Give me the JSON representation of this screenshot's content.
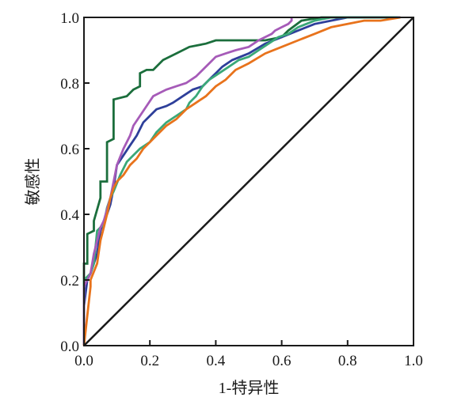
{
  "chart_data": {
    "type": "line",
    "title": "",
    "xlabel": "1-特异性",
    "ylabel": "敏感性",
    "xlim": [
      0,
      1
    ],
    "ylim": [
      0,
      1
    ],
    "xticks": [
      "0.0",
      "0.2",
      "0.4",
      "0.6",
      "0.8",
      "1.0"
    ],
    "yticks": [
      "0.0",
      "0.2",
      "0.4",
      "0.6",
      "0.8",
      "1.0"
    ],
    "grid": false,
    "legend": "none",
    "reference_line": {
      "x": [
        0,
        1
      ],
      "y": [
        0,
        1
      ],
      "color": "#1a1a1a"
    },
    "series": [
      {
        "color": "#1b6e3c",
        "x": [
          0.0,
          0.0,
          0.01,
          0.01,
          0.03,
          0.03,
          0.05,
          0.05,
          0.07,
          0.07,
          0.09,
          0.09,
          0.13,
          0.15,
          0.17,
          0.17,
          0.19,
          0.21,
          0.24,
          0.28,
          0.32,
          0.37,
          0.4,
          0.45,
          0.55,
          0.6,
          0.62,
          0.66,
          0.72,
          0.75,
          0.8,
          0.95,
          0.95
        ],
        "y": [
          0.0,
          0.25,
          0.25,
          0.34,
          0.35,
          0.38,
          0.45,
          0.5,
          0.5,
          0.62,
          0.63,
          0.75,
          0.76,
          0.78,
          0.79,
          0.83,
          0.84,
          0.84,
          0.87,
          0.89,
          0.91,
          0.92,
          0.93,
          0.93,
          0.93,
          0.94,
          0.96,
          0.99,
          1.0,
          1.0,
          1.0,
          1.0,
          1.0
        ]
      },
      {
        "color": "#2e3f9a",
        "x": [
          0.0,
          0.0,
          0.01,
          0.02,
          0.04,
          0.05,
          0.06,
          0.07,
          0.08,
          0.09,
          0.1,
          0.12,
          0.14,
          0.16,
          0.18,
          0.2,
          0.22,
          0.25,
          0.27,
          0.3,
          0.33,
          0.36,
          0.38,
          0.4,
          0.42,
          0.45,
          0.5,
          0.55,
          0.6,
          0.65,
          0.7,
          0.75,
          0.8,
          0.9,
          0.96,
          0.96
        ],
        "y": [
          0.0,
          0.12,
          0.2,
          0.22,
          0.28,
          0.35,
          0.38,
          0.4,
          0.43,
          0.48,
          0.55,
          0.58,
          0.61,
          0.64,
          0.68,
          0.7,
          0.72,
          0.73,
          0.74,
          0.76,
          0.78,
          0.79,
          0.81,
          0.83,
          0.85,
          0.87,
          0.89,
          0.92,
          0.94,
          0.96,
          0.98,
          0.99,
          1.0,
          1.0,
          1.0,
          1.0
        ]
      },
      {
        "color": "#3aa878",
        "x": [
          0.0,
          0.0,
          0.02,
          0.03,
          0.04,
          0.06,
          0.07,
          0.08,
          0.09,
          0.11,
          0.13,
          0.15,
          0.17,
          0.2,
          0.22,
          0.25,
          0.28,
          0.31,
          0.32,
          0.34,
          0.36,
          0.38,
          0.41,
          0.44,
          0.47,
          0.5,
          0.53,
          0.56,
          0.59,
          0.62,
          0.65,
          0.7,
          0.75,
          0.8,
          0.95,
          0.95
        ],
        "y": [
          0.0,
          0.2,
          0.22,
          0.25,
          0.35,
          0.37,
          0.42,
          0.45,
          0.47,
          0.52,
          0.56,
          0.58,
          0.6,
          0.62,
          0.65,
          0.68,
          0.7,
          0.72,
          0.74,
          0.76,
          0.79,
          0.81,
          0.83,
          0.85,
          0.87,
          0.88,
          0.9,
          0.92,
          0.94,
          0.95,
          0.97,
          0.99,
          1.0,
          1.0,
          1.0,
          1.0
        ]
      },
      {
        "color": "#a65bb8",
        "x": [
          0.0,
          0.0,
          0.02,
          0.03,
          0.05,
          0.06,
          0.08,
          0.1,
          0.12,
          0.14,
          0.15,
          0.17,
          0.19,
          0.21,
          0.23,
          0.25,
          0.28,
          0.31,
          0.34,
          0.36,
          0.38,
          0.4,
          0.43,
          0.46,
          0.5,
          0.53,
          0.55,
          0.57,
          0.58,
          0.6,
          0.62,
          0.63,
          0.63
        ],
        "y": [
          0.0,
          0.18,
          0.22,
          0.28,
          0.36,
          0.38,
          0.45,
          0.55,
          0.6,
          0.64,
          0.67,
          0.7,
          0.73,
          0.76,
          0.77,
          0.78,
          0.79,
          0.8,
          0.82,
          0.84,
          0.86,
          0.88,
          0.89,
          0.9,
          0.91,
          0.93,
          0.94,
          0.95,
          0.96,
          0.97,
          0.98,
          0.99,
          1.0
        ]
      },
      {
        "color": "#e8731c",
        "x": [
          0.0,
          0.02,
          0.02,
          0.04,
          0.05,
          0.06,
          0.07,
          0.08,
          0.09,
          0.1,
          0.12,
          0.14,
          0.16,
          0.18,
          0.2,
          0.22,
          0.25,
          0.28,
          0.31,
          0.34,
          0.37,
          0.4,
          0.43,
          0.46,
          0.5,
          0.55,
          0.6,
          0.65,
          0.7,
          0.75,
          0.8,
          0.85,
          0.9,
          0.96
        ],
        "y": [
          0.0,
          0.18,
          0.2,
          0.25,
          0.32,
          0.36,
          0.4,
          0.45,
          0.48,
          0.5,
          0.52,
          0.55,
          0.57,
          0.6,
          0.62,
          0.64,
          0.67,
          0.69,
          0.72,
          0.74,
          0.76,
          0.79,
          0.81,
          0.84,
          0.86,
          0.89,
          0.91,
          0.93,
          0.95,
          0.97,
          0.98,
          0.99,
          0.99,
          1.0
        ]
      }
    ]
  }
}
